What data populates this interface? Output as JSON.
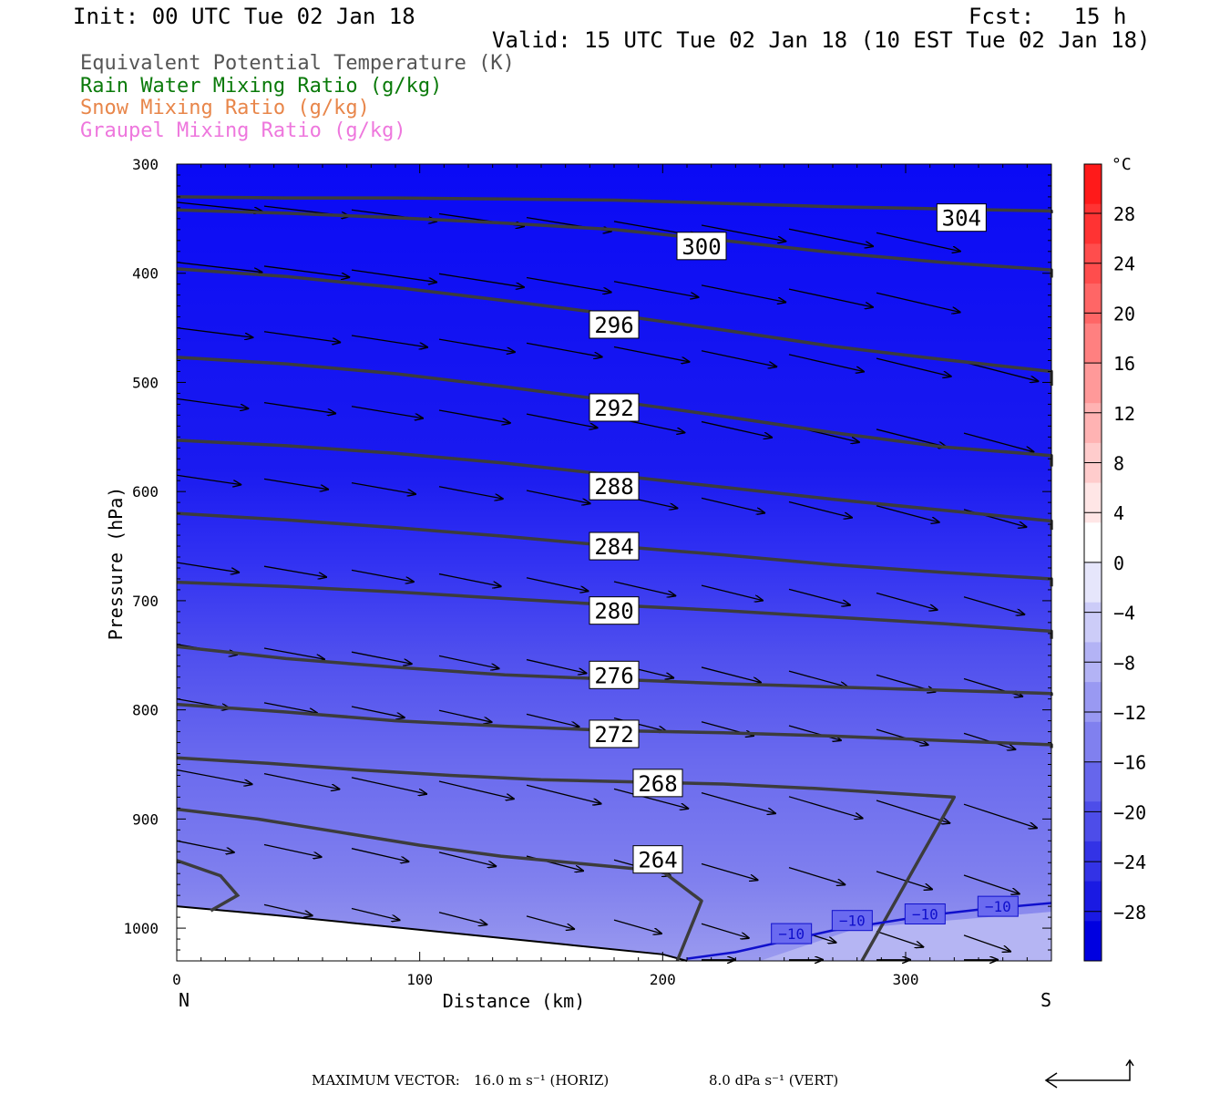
{
  "header": {
    "init": "Init: 00 UTC Tue 02 Jan 18",
    "fcst": "Fcst:   15 h",
    "valid": "Valid: 15 UTC Tue 02 Jan 18 (10 EST Tue 02 Jan 18)"
  },
  "legend": [
    {
      "text": "Equivalent Potential Temperature (K)",
      "color": "#555555"
    },
    {
      "text": "Rain Water Mixing Ratio (g/kg)",
      "color": "#0a7a0a"
    },
    {
      "text": "Snow Mixing Ratio (g/kg)",
      "color": "#e8864a"
    },
    {
      "text": "Graupel Mixing Ratio (g/kg)",
      "color": "#ee77dd"
    }
  ],
  "chart_data": {
    "type": "cross-section",
    "xlabel": "Distance (km)",
    "ylabel": "Pressure (hPa)",
    "xlim": [
      0,
      360
    ],
    "ylim": [
      1030,
      300
    ],
    "x_ticks": [
      0,
      100,
      200,
      300
    ],
    "y_ticks": [
      300,
      400,
      500,
      600,
      700,
      800,
      900,
      1000
    ],
    "x_end_labels": {
      "left": "N",
      "right": "S"
    },
    "theta_e_contours": [
      {
        "level": 304,
        "p": [
          330,
          331,
          331,
          332,
          333,
          336,
          339,
          341,
          343,
          345
        ],
        "label_x": 323,
        "label_p": 349
      },
      {
        "level": 300,
        "p": [
          342,
          345,
          349,
          354,
          360,
          370,
          381,
          390,
          397,
          404
        ],
        "label_x": 216,
        "label_p": 375
      },
      {
        "level": 296,
        "p": [
          396,
          403,
          413,
          425,
          438,
          452,
          467,
          479,
          490,
          503
        ],
        "label_x": 180,
        "label_p": 447
      },
      {
        "level": 292,
        "p": [
          477,
          483,
          492,
          504,
          517,
          531,
          546,
          559,
          567,
          577
        ],
        "label_x": 180,
        "label_p": 523
      },
      {
        "level": 288,
        "p": [
          553,
          558,
          565,
          574,
          585,
          596,
          607,
          617,
          627,
          635
        ],
        "label_x": 180,
        "label_p": 595
      },
      {
        "level": 284,
        "p": [
          620,
          626,
          633,
          641,
          650,
          658,
          667,
          674,
          680,
          687
        ],
        "label_x": 180,
        "label_p": 650
      },
      {
        "level": 280,
        "p": [
          683,
          687,
          692,
          698,
          704,
          709,
          715,
          721,
          728,
          735
        ],
        "label_x": 180,
        "label_p": 709
      },
      {
        "level": 276,
        "p": [
          742,
          753,
          761,
          768,
          772,
          776,
          779,
          782,
          785,
          787
        ],
        "label_x": 180,
        "label_p": 768
      },
      {
        "level": 272,
        "p": [
          795,
          802,
          810,
          815,
          819,
          821,
          824,
          828,
          832,
          835
        ],
        "label_x": 180,
        "label_p": 822
      },
      {
        "level": 268,
        "p": [
          844,
          849,
          855,
          860,
          864,
          866,
          868,
          872,
          880,
          1030
        ],
        "label_x": 198,
        "label_p": 867
      },
      {
        "level": 264,
        "p": [
          891,
          900,
          912,
          924,
          934,
          941,
          948,
          975,
          1030
        ],
        "label_x": 198,
        "label_p": 937
      }
    ],
    "temperature_contours": [
      {
        "level": -10,
        "x": [
          210,
          230,
          250,
          270,
          290,
          310,
          330,
          360
        ],
        "p": [
          1028,
          1022,
          1012,
          1002,
          995,
          988,
          983,
          977
        ]
      }
    ],
    "temperature_labels": [
      {
        "text": "−10",
        "x": 253,
        "p": 1005
      },
      {
        "text": "−10",
        "x": 278,
        "p": 993
      },
      {
        "text": "−10",
        "x": 308,
        "p": 987
      },
      {
        "text": "−10",
        "x": 338,
        "p": 980
      }
    ],
    "colorbar": {
      "unit": "°C",
      "labels": [
        "28",
        "24",
        "20",
        "16",
        "12",
        "8",
        "4",
        "0",
        "−4",
        "−8",
        "−12",
        "−16",
        "−20",
        "−24",
        "−28"
      ]
    }
  },
  "footer": {
    "max_vector": "MAXIMUM VECTOR:",
    "horiz": "16.0 m s⁻¹ (HORIZ)",
    "vert": "8.0 dPa s⁻¹ (VERT)"
  }
}
